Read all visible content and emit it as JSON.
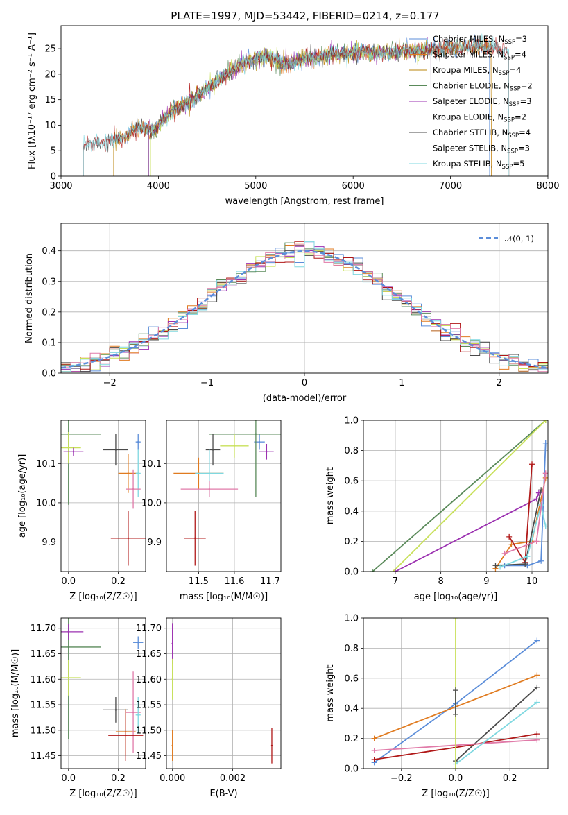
{
  "figure_title": "PLATE=1997, MJD=53442, FIBERID=0214, z=0.177",
  "chart_data": [
    {
      "id": "spectrum",
      "type": "line",
      "title": "PLATE=1997, MJD=53442, FIBERID=0214, z=0.177",
      "xlabel": "wavelength [Angstrom, rest frame]",
      "ylabel": "Flux [fλ10⁻¹⁷ erg cm⁻² s⁻¹ A⁻¹]",
      "xlim": [
        3000,
        8000
      ],
      "ylim": [
        0,
        29.5
      ],
      "xticks": [
        3000,
        4000,
        5000,
        6000,
        7000,
        8000
      ],
      "yticks": [
        0,
        5,
        10,
        15,
        20,
        25
      ],
      "grid": false,
      "legend_position": "right",
      "continuum": [
        [
          3230,
          6.0
        ],
        [
          3400,
          6.5
        ],
        [
          3600,
          7.5
        ],
        [
          3800,
          9.5
        ],
        [
          3950,
          9.0
        ],
        [
          4100,
          12.0
        ],
        [
          4300,
          14.5
        ],
        [
          4500,
          17.0
        ],
        [
          4700,
          20.0
        ],
        [
          4900,
          22.5
        ],
        [
          5100,
          23.5
        ],
        [
          5300,
          22.0
        ],
        [
          5500,
          23.0
        ],
        [
          5700,
          23.5
        ],
        [
          5900,
          24.0
        ],
        [
          6100,
          24.5
        ],
        [
          6300,
          24.0
        ],
        [
          6500,
          24.5
        ],
        [
          6700,
          24.5
        ],
        [
          7000,
          25.0
        ],
        [
          7300,
          25.5
        ],
        [
          7600,
          24.5
        ]
      ],
      "series": [
        {
          "name": "Chabrier MILES, N_SSP=3",
          "label_main": "Chabrier MILES, N",
          "label_sub": "SSP",
          "label_tail": "=3",
          "color": "#5b8dd9",
          "range": [
            3540,
            7400
          ]
        },
        {
          "name": "Salpeter MILES, N_SSP=4",
          "label_main": "Salpeter MILES, N",
          "label_sub": "SSP",
          "label_tail": "=4",
          "color": "#e07b20",
          "range": [
            3540,
            7420
          ]
        },
        {
          "name": "Kroupa MILES, N_SSP=4",
          "label_main": "Kroupa MILES, N",
          "label_sub": "SSP",
          "label_tail": "=4",
          "color": "#b8860b",
          "range": [
            3540,
            7420
          ]
        },
        {
          "name": "Chabrier ELODIE, N_SSP=2",
          "label_main": "Chabrier ELODIE, N",
          "label_sub": "SSP",
          "label_tail": "=2",
          "color": "#5a8a5a",
          "range": [
            3900,
            6800
          ]
        },
        {
          "name": "Salpeter ELODIE, N_SSP=3",
          "label_main": "Salpeter ELODIE, N",
          "label_sub": "SSP",
          "label_tail": "=3",
          "color": "#9b30b0",
          "range": [
            3900,
            6800
          ]
        },
        {
          "name": "Kroupa ELODIE, N_SSP=2",
          "label_main": "Kroupa ELODIE, N",
          "label_sub": "SSP",
          "label_tail": "=2",
          "color": "#c8e05a",
          "range": [
            3920,
            6800
          ]
        },
        {
          "name": "Chabrier STELIB, N_SSP=4",
          "label_main": "Chabrier STELIB, N",
          "label_sub": "SSP",
          "label_tail": "=4",
          "color": "#4a4a4a",
          "range": [
            3230,
            7600
          ]
        },
        {
          "name": "Salpeter STELIB, N_SSP=3",
          "label_main": "Salpeter STELIB, N",
          "label_sub": "SSP",
          "label_tail": "=3",
          "color": "#b01818",
          "range": [
            3230,
            7600
          ]
        },
        {
          "name": "Kroupa STELIB, N_SSP=5",
          "label_main": "Kroupa STELIB, N",
          "label_sub": "SSP",
          "label_tail": "=5",
          "color": "#7fd8e0",
          "range": [
            3230,
            7600
          ]
        }
      ]
    },
    {
      "id": "residuals",
      "type": "area",
      "xlabel": "(data-model)/error",
      "ylabel": "Normed distribution",
      "xlim": [
        -2.5,
        2.5
      ],
      "ylim": [
        0,
        0.49
      ],
      "xticks": [
        -2,
        -1,
        0,
        1,
        2
      ],
      "yticks": [
        0.0,
        0.1,
        0.2,
        0.3,
        0.4
      ],
      "grid": true,
      "legend_position": "top-right",
      "legend": "𝒩(0, 1)",
      "bin_width": 0.1,
      "histogram_colors": [
        "#5b8dd9",
        "#e07b20",
        "#5a8a5a",
        "#9b30b0",
        "#c8e05a",
        "#4a4a4a",
        "#b01818",
        "#7fd8e0",
        "#e07aa8"
      ],
      "gaussian_color": "#5b8dd9"
    },
    {
      "id": "age_vs_Z",
      "type": "scatter",
      "xlabel": "Z [log₁₀(Z/Z☉)]",
      "ylabel": "age  [log₁₀(age/yr)]",
      "xlim": [
        -0.03,
        0.31
      ],
      "ylim": [
        9.825,
        10.21
      ],
      "xticks": [
        0.0,
        0.2
      ],
      "yticks": [
        9.9,
        10.0,
        10.1
      ],
      "grid": true,
      "points": [
        {
          "x": 0.28,
          "y": 10.155,
          "xerr": 0.01,
          "yerr": 0.02,
          "color": "#5b8dd9"
        },
        {
          "x": 0.0,
          "y": 10.175,
          "xerr": 0.13,
          "yerr": 0.18,
          "color": "#5a8a5a"
        },
        {
          "x": 0.0,
          "y": 10.14,
          "xerr": 0.05,
          "yerr": 0.04,
          "color": "#c8e05a"
        },
        {
          "x": 0.02,
          "y": 10.13,
          "xerr": 0.04,
          "yerr": 0.01,
          "color": "#9b30b0"
        },
        {
          "x": 0.19,
          "y": 10.135,
          "xerr": 0.05,
          "yerr": 0.04,
          "color": "#4a4a4a"
        },
        {
          "x": 0.24,
          "y": 10.075,
          "xerr": 0.04,
          "yerr": 0.05,
          "color": "#e07b20"
        },
        {
          "x": 0.28,
          "y": 10.075,
          "xerr": 0.01,
          "yerr": 0.06,
          "color": "#7fd8e0"
        },
        {
          "x": 0.26,
          "y": 10.035,
          "xerr": 0.03,
          "yerr": 0.05,
          "color": "#e07aa8"
        },
        {
          "x": 0.24,
          "y": 9.91,
          "xerr": 0.07,
          "yerr": 0.07,
          "color": "#b01818"
        }
      ]
    },
    {
      "id": "age_vs_mass",
      "type": "scatter",
      "xlabel": "mass [log₁₀(M/M☉)]",
      "ylabel": "",
      "xlim": [
        11.41,
        11.73
      ],
      "ylim": [
        9.825,
        10.21
      ],
      "xticks": [
        11.5,
        11.6,
        11.7
      ],
      "yticks": [
        9.9,
        10.0,
        10.1
      ],
      "grid": true,
      "points": [
        {
          "x": 11.67,
          "y": 10.155,
          "xerr": 0.015,
          "yerr": 0.02,
          "color": "#5b8dd9"
        },
        {
          "x": 11.66,
          "y": 10.175,
          "xerr": 0.13,
          "yerr": 0.16,
          "color": "#5a8a5a"
        },
        {
          "x": 11.6,
          "y": 10.145,
          "xerr": 0.04,
          "yerr": 0.03,
          "color": "#c8e05a"
        },
        {
          "x": 11.69,
          "y": 10.13,
          "xerr": 0.02,
          "yerr": 0.02,
          "color": "#9b30b0"
        },
        {
          "x": 11.54,
          "y": 10.135,
          "xerr": 0.02,
          "yerr": 0.04,
          "color": "#4a4a4a"
        },
        {
          "x": 11.5,
          "y": 10.075,
          "xerr": 0.07,
          "yerr": 0.04,
          "color": "#e07b20"
        },
        {
          "x": 11.53,
          "y": 10.075,
          "xerr": 0.04,
          "yerr": 0.06,
          "color": "#7fd8e0"
        },
        {
          "x": 11.53,
          "y": 10.035,
          "xerr": 0.08,
          "yerr": 0.02,
          "color": "#e07aa8"
        },
        {
          "x": 11.49,
          "y": 9.91,
          "xerr": 0.03,
          "yerr": 0.07,
          "color": "#b01818"
        }
      ]
    },
    {
      "id": "weight_vs_age",
      "type": "line",
      "xlabel": "age  [log₁₀(age/yr)]",
      "ylabel": "mass weight",
      "xlim": [
        6.3,
        10.35
      ],
      "ylim": [
        0,
        1.0
      ],
      "xticks": [
        7,
        8,
        9,
        10
      ],
      "yticks": [
        0.0,
        0.2,
        0.4,
        0.6,
        0.8,
        1.0
      ],
      "grid": true,
      "series": [
        {
          "color": "#5a8a5a",
          "points": [
            [
              6.5,
              0.0
            ],
            [
              10.3,
              1.0
            ]
          ]
        },
        {
          "color": "#c8e05a",
          "points": [
            [
              6.95,
              0.0
            ],
            [
              10.3,
              1.0
            ]
          ]
        },
        {
          "color": "#9b30b0",
          "points": [
            [
              7.0,
              0.0
            ],
            [
              10.1,
              0.48
            ],
            [
              10.15,
              0.52
            ]
          ]
        },
        {
          "color": "#5b8dd9",
          "points": [
            [
              9.4,
              0.04
            ],
            [
              9.9,
              0.04
            ],
            [
              10.2,
              0.07
            ],
            [
              10.3,
              0.85
            ]
          ]
        },
        {
          "color": "#e07b20",
          "points": [
            [
              9.2,
              0.02
            ],
            [
              9.55,
              0.18
            ],
            [
              10.0,
              0.2
            ],
            [
              10.3,
              0.62
            ]
          ]
        },
        {
          "color": "#b01818",
          "points": [
            [
              9.5,
              0.23
            ],
            [
              9.85,
              0.06
            ],
            [
              10.0,
              0.71
            ]
          ]
        },
        {
          "color": "#4a4a4a",
          "points": [
            [
              9.2,
              0.04
            ],
            [
              9.85,
              0.05
            ],
            [
              10.2,
              0.54
            ]
          ]
        },
        {
          "color": "#7fd8e0",
          "points": [
            [
              9.3,
              0.03
            ],
            [
              9.9,
              0.1
            ],
            [
              10.2,
              0.44
            ],
            [
              10.3,
              0.3
            ]
          ]
        },
        {
          "color": "#e07aa8",
          "points": [
            [
              9.4,
              0.12
            ],
            [
              10.1,
              0.2
            ],
            [
              10.3,
              0.65
            ]
          ]
        }
      ]
    },
    {
      "id": "mass_vs_Z",
      "type": "scatter",
      "xlabel": "Z [log₁₀(Z/Z☉)]",
      "ylabel": "mass [log₁₀(M/M☉)]",
      "xlim": [
        -0.03,
        0.31
      ],
      "ylim": [
        11.425,
        11.72
      ],
      "xticks": [
        0.0,
        0.2
      ],
      "yticks": [
        11.45,
        11.5,
        11.55,
        11.6,
        11.65,
        11.7
      ],
      "grid": true,
      "points": [
        {
          "x": 0.28,
          "y": 11.672,
          "xerr": 0.02,
          "yerr": 0.012,
          "color": "#5b8dd9"
        },
        {
          "x": 0.0,
          "y": 11.663,
          "xerr": 0.13,
          "yerr": 0.18,
          "color": "#5a8a5a"
        },
        {
          "x": 0.0,
          "y": 11.603,
          "xerr": 0.05,
          "yerr": 0.035,
          "color": "#c8e05a"
        },
        {
          "x": 0.0,
          "y": 11.693,
          "xerr": 0.06,
          "yerr": 0.015,
          "color": "#9b30b0"
        },
        {
          "x": 0.19,
          "y": 11.54,
          "xerr": 0.05,
          "yerr": 0.025,
          "color": "#4a4a4a"
        },
        {
          "x": 0.23,
          "y": 11.497,
          "xerr": 0.04,
          "yerr": 0.045,
          "color": "#e07b20"
        },
        {
          "x": 0.26,
          "y": 11.535,
          "xerr": 0.03,
          "yerr": 0.08,
          "color": "#e07aa8"
        },
        {
          "x": 0.28,
          "y": 11.53,
          "xerr": 0.01,
          "yerr": 0.035,
          "color": "#7fd8e0"
        },
        {
          "x": 0.23,
          "y": 11.49,
          "xerr": 0.07,
          "yerr": 0.05,
          "color": "#b01818"
        }
      ]
    },
    {
      "id": "mass_vs_ebv",
      "type": "scatter",
      "xlabel": "E(B-V)",
      "ylabel": "",
      "xlim": [
        -0.0002,
        0.0036
      ],
      "ylim": [
        11.425,
        11.72
      ],
      "xticks": [
        0.0,
        0.002
      ],
      "xtick_labels": [
        "0.000",
        "0.002"
      ],
      "yticks": [
        11.45,
        11.5,
        11.55,
        11.6,
        11.65,
        11.7
      ],
      "grid": true,
      "points": [
        {
          "x": 0.0,
          "y": 11.67,
          "xerr": 0.0,
          "yerr": 0.04,
          "color": "#9b30b0"
        },
        {
          "x": 0.0,
          "y": 11.6,
          "xerr": 0.0,
          "yerr": 0.04,
          "color": "#c8e05a"
        },
        {
          "x": 0.0,
          "y": 11.47,
          "xerr": 0.0,
          "yerr": 0.03,
          "color": "#e07b20"
        },
        {
          "x": 0.0033,
          "y": 11.47,
          "xerr": 0.0,
          "yerr": 0.035,
          "color": "#b01818"
        }
      ]
    },
    {
      "id": "weight_vs_Z",
      "type": "line",
      "xlabel": "Z [log₁₀(Z/Z☉)]",
      "ylabel": "mass weight",
      "xlim": [
        -0.34,
        0.34
      ],
      "ylim": [
        0,
        1.0
      ],
      "xticks": [
        -0.2,
        0.0,
        0.2
      ],
      "yticks": [
        0.0,
        0.2,
        0.4,
        0.6,
        0.8,
        1.0
      ],
      "grid": true,
      "series": [
        {
          "color": "#5b8dd9",
          "points": [
            [
              -0.3,
              0.04
            ],
            [
              0.0,
              0.43
            ],
            [
              0.3,
              0.85
            ]
          ]
        },
        {
          "color": "#e07b20",
          "points": [
            [
              -0.3,
              0.2
            ],
            [
              0.3,
              0.62
            ]
          ]
        },
        {
          "color": "#4a4a4a",
          "points": [
            [
              0.0,
              0.05
            ],
            [
              0.3,
              0.54
            ]
          ]
        },
        {
          "color": "#b01818",
          "points": [
            [
              -0.3,
              0.06
            ],
            [
              0.0,
              0.14
            ],
            [
              0.3,
              0.23
            ]
          ]
        },
        {
          "color": "#e07aa8",
          "points": [
            [
              -0.3,
              0.12
            ],
            [
              0.3,
              0.19
            ]
          ]
        },
        {
          "color": "#7fd8e0",
          "points": [
            [
              0.0,
              0.03
            ],
            [
              0.3,
              0.44
            ]
          ]
        },
        {
          "color": "#c8e05a",
          "points": [
            [
              0.0,
              0.0
            ],
            [
              0.0,
              1.0
            ]
          ]
        },
        {
          "color": "#4a4a4a",
          "points": [
            [
              0.0,
              0.36
            ],
            [
              0.0,
              0.52
            ]
          ]
        }
      ]
    }
  ]
}
